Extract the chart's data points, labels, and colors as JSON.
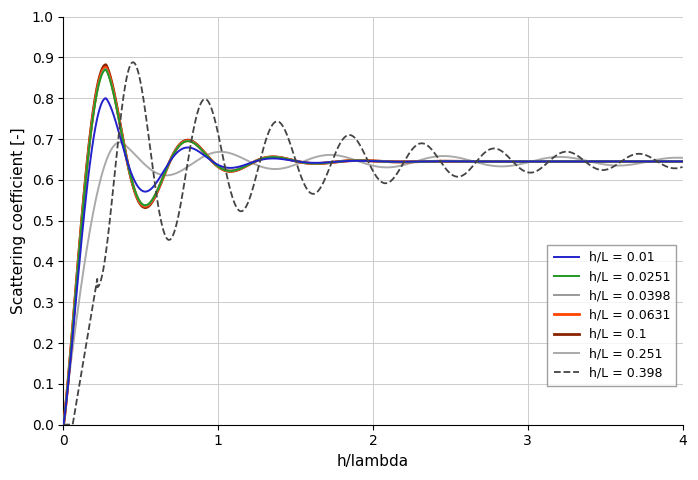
{
  "xlabel": "h/lambda",
  "ylabel": "Scattering coefficient [-]",
  "xlim": [
    0,
    4
  ],
  "ylim": [
    0,
    1
  ],
  "xticks": [
    0,
    1,
    2,
    3,
    4
  ],
  "yticks": [
    0,
    0.1,
    0.2,
    0.3,
    0.4,
    0.5,
    0.6,
    0.7,
    0.8,
    0.9,
    1
  ],
  "legend_entries": [
    {
      "label": "h/L = 0.01",
      "color": "#2222cc",
      "lw": 1.4,
      "ls": "-",
      "zorder": 7
    },
    {
      "label": "h/L = 0.0251",
      "color": "#229922",
      "lw": 1.4,
      "ls": "-",
      "zorder": 6
    },
    {
      "label": "h/L = 0.0398",
      "color": "#999999",
      "lw": 1.4,
      "ls": "-",
      "zorder": 5
    },
    {
      "label": "h/L = 0.0631",
      "color": "#ff4400",
      "lw": 2.0,
      "ls": "-",
      "zorder": 4
    },
    {
      "label": "h/L = 0.1",
      "color": "#882200",
      "lw": 2.0,
      "ls": "-",
      "zorder": 3
    },
    {
      "label": "h/L = 0.251",
      "color": "#aaaaaa",
      "lw": 1.4,
      "ls": "-",
      "zorder": 2
    },
    {
      "label": "h/L = 0.398",
      "color": "#444444",
      "lw": 1.3,
      "ls": "--",
      "zorder": 8
    }
  ],
  "grid_color": "#cccccc",
  "background_color": "#ffffff",
  "legend_fontsize": 9,
  "axis_fontsize": 11,
  "tick_fontsize": 10
}
